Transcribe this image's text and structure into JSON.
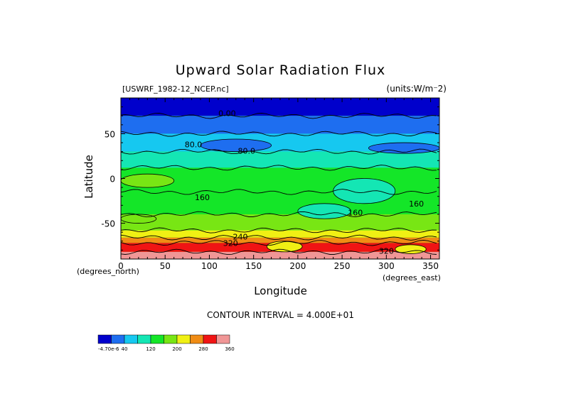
{
  "chart_data": {
    "type": "heatmap",
    "title": "Upward Solar Radiation Flux",
    "source_label": "[USWRF_1982-12_NCEP.nc]",
    "units_label": "(units:W/m⁻2)",
    "xlabel": "Longitude",
    "ylabel": "Latitude",
    "x_units_label": "(degrees_north)",
    "x2_units_label": "(degrees_east)",
    "xlim": [
      0,
      360
    ],
    "ylim": [
      -90,
      90
    ],
    "x_ticks": [
      0,
      50,
      100,
      150,
      200,
      250,
      300,
      350
    ],
    "y_ticks": [
      -50,
      0,
      50
    ],
    "contour_interval_label": "CONTOUR INTERVAL = 4.000E+01",
    "contour_labels": [
      {
        "text": "0.00",
        "lon": 120,
        "lat": 73
      },
      {
        "text": "80.0",
        "lon": 82,
        "lat": 38
      },
      {
        "text": "80.0",
        "lon": 142,
        "lat": 31
      },
      {
        "text": "160",
        "lon": 92,
        "lat": -21
      },
      {
        "text": "160",
        "lon": 265,
        "lat": -38
      },
      {
        "text": "160",
        "lon": 334,
        "lat": -28
      },
      {
        "text": "240",
        "lon": 135,
        "lat": -65
      },
      {
        "text": "320",
        "lon": 124,
        "lat": -72
      },
      {
        "text": "320",
        "lon": 300,
        "lat": -81
      }
    ],
    "bands": [
      {
        "lat_top": 90,
        "lat_bottom": 70,
        "level": 0
      },
      {
        "lat_top": 70,
        "lat_bottom": 50,
        "level": 1
      },
      {
        "lat_top": 50,
        "lat_bottom": 30,
        "level": 2
      },
      {
        "lat_top": 30,
        "lat_bottom": 12,
        "level": 3
      },
      {
        "lat_top": 12,
        "lat_bottom": -15,
        "level": 4
      },
      {
        "lat_top": -15,
        "lat_bottom": -40,
        "level": 4
      },
      {
        "lat_top": -40,
        "lat_bottom": -58,
        "level": 5
      },
      {
        "lat_top": -58,
        "lat_bottom": -66,
        "level": 6
      },
      {
        "lat_top": -66,
        "lat_bottom": -72,
        "level": 7
      },
      {
        "lat_top": -72,
        "lat_bottom": -82,
        "level": 8
      },
      {
        "lat_top": -82,
        "lat_bottom": -90,
        "level": 9
      }
    ],
    "patches": [
      {
        "lon0": 90,
        "lon1": 170,
        "lat0": 30,
        "lat1": 44,
        "level": 1
      },
      {
        "lon0": 280,
        "lon1": 360,
        "lat0": 28,
        "lat1": 40,
        "level": 1
      },
      {
        "lon0": 0,
        "lon1": 60,
        "lat0": -10,
        "lat1": 5,
        "level": 5
      },
      {
        "lon0": 240,
        "lon1": 310,
        "lat0": -28,
        "lat1": 0,
        "level": 3
      },
      {
        "lon0": 200,
        "lon1": 260,
        "lat0": -45,
        "lat1": -28,
        "level": 3
      },
      {
        "lon0": 165,
        "lon1": 205,
        "lat0": -82,
        "lat1": -70,
        "level": 6
      },
      {
        "lon0": 310,
        "lon1": 345,
        "lat0": -84,
        "lat1": -74,
        "level": 6
      },
      {
        "lon0": 0,
        "lon1": 40,
        "lat0": -50,
        "lat1": -40,
        "level": 5
      }
    ],
    "colorbar": {
      "colors": [
        "#0000cc",
        "#1e6ef0",
        "#16c8f0",
        "#14e6b4",
        "#14e628",
        "#78e614",
        "#f0f014",
        "#f08c14",
        "#f01414",
        "#f09696"
      ],
      "tick_labels": [
        "-4.70e-6",
        "40",
        "120",
        "200",
        "280",
        "360"
      ]
    }
  }
}
